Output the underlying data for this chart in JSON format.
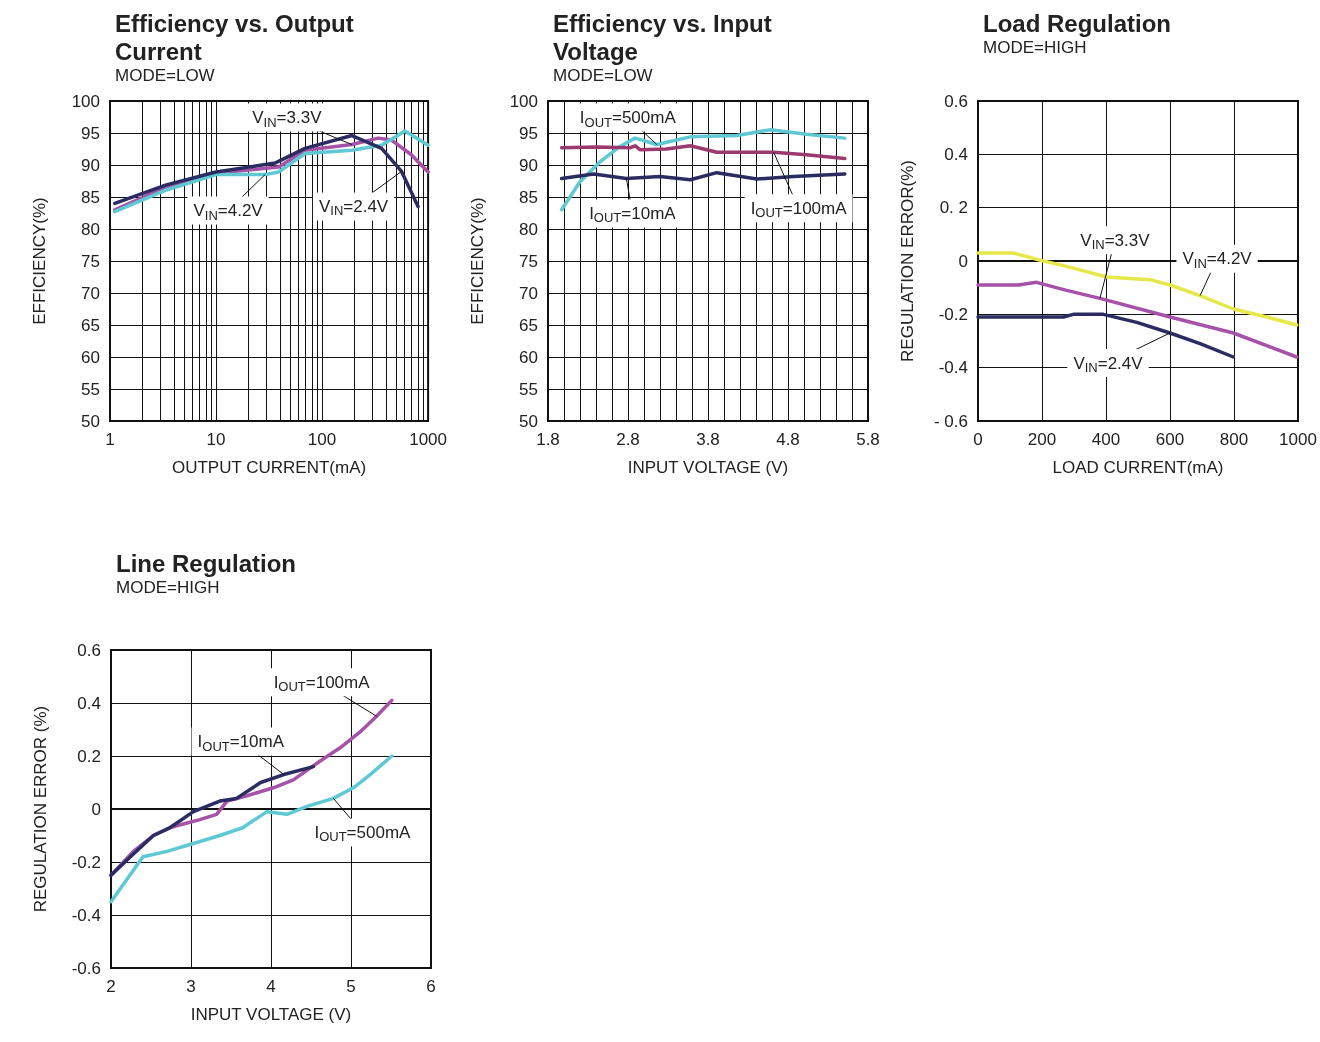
{
  "chart_data": [
    {
      "type": "line",
      "title": "Efficiency vs. Output Current",
      "subtitle": "MODE=LOW",
      "xlabel": "OUTPUT CURRENT(mA)",
      "ylabel": "EFFICIENCY(%)",
      "log": "x",
      "grid": true,
      "xlim": [
        1,
        1000
      ],
      "xticks": [
        1,
        {
          "value": 2,
          "label": null
        },
        {
          "value": 3,
          "label": null
        },
        {
          "value": 4,
          "label": null
        },
        {
          "value": 5,
          "label": null
        },
        {
          "value": 6,
          "label": null
        },
        {
          "value": 7,
          "label": null
        },
        {
          "value": 8,
          "label": null
        },
        {
          "value": 9,
          "label": null
        },
        10,
        {
          "value": 20,
          "label": null
        },
        {
          "value": 30,
          "label": null
        },
        {
          "value": 40,
          "label": null
        },
        {
          "value": 50,
          "label": null
        },
        {
          "value": 60,
          "label": null
        },
        {
          "value": 70,
          "label": null
        },
        {
          "value": 80,
          "label": null
        },
        {
          "value": 90,
          "label": null
        },
        100,
        {
          "value": 200,
          "label": null
        },
        {
          "value": 300,
          "label": null
        },
        {
          "value": 400,
          "label": null
        },
        {
          "value": 500,
          "label": null
        },
        {
          "value": 600,
          "label": null
        },
        {
          "value": 700,
          "label": null
        },
        {
          "value": 800,
          "label": null
        },
        {
          "value": 900,
          "label": null
        },
        1000
      ],
      "ylim": [
        50,
        100
      ],
      "yticks": [
        50,
        55,
        60,
        65,
        70,
        75,
        80,
        85,
        90,
        95,
        100
      ],
      "series": [
        {
          "name": "V$_{IN}$=3.3V",
          "color": "#a552a8",
          "x": [
            1.11,
            3.4,
            10,
            39,
            69,
            191,
            339,
            452,
            695,
            1000
          ],
          "values": [
            83.0,
            86.6,
            88.7,
            89.7,
            92.3,
            93.2,
            94.2,
            93.9,
            91.6,
            88.9
          ]
        },
        {
          "name": "V$_{IN}$=4.2V",
          "color": "#5ec8d3",
          "x": [
            1.11,
            3.4,
            10,
            29,
            39,
            69,
            191,
            364,
            604,
            1000
          ],
          "values": [
            82.7,
            86.1,
            88.5,
            88.5,
            88.9,
            91.8,
            92.3,
            93.1,
            95.3,
            93.1
          ]
        },
        {
          "name": "V$_{IN}$=2.4V",
          "color": "#2b2d62",
          "x": [
            1.11,
            3.4,
            10,
            36,
            69,
            191,
            364,
            562,
            804
          ],
          "values": [
            84.0,
            86.9,
            88.9,
            90.3,
            92.6,
            94.6,
            92.6,
            89.0,
            83.5
          ]
        }
      ]
    },
    {
      "type": "line",
      "title": "Efficiency vs. Input Voltage",
      "subtitle": "MODE=LOW",
      "xlabel": "INPUT VOLTAGE (V)",
      "ylabel": "EFFICIENCY(%)",
      "grid": true,
      "xlim": [
        1.8,
        5.8
      ],
      "xticks": [
        1.8,
        {
          "value": 2,
          "label": null
        },
        {
          "value": 2.2,
          "label": null
        },
        {
          "value": 2.4,
          "label": null
        },
        {
          "value": 2.6,
          "label": null
        },
        2.8,
        {
          "value": 3,
          "label": null
        },
        {
          "value": 3.2,
          "label": null
        },
        {
          "value": 3.4,
          "label": null
        },
        {
          "value": 3.6,
          "label": null
        },
        3.8,
        {
          "value": 4,
          "label": null
        },
        {
          "value": 4.2,
          "label": null
        },
        {
          "value": 4.4,
          "label": null
        },
        {
          "value": 4.6,
          "label": null
        },
        4.8,
        {
          "value": 5,
          "label": null
        },
        {
          "value": 5.2,
          "label": null
        },
        {
          "value": 5.4,
          "label": null
        },
        {
          "value": 5.6,
          "label": null
        },
        5.8
      ],
      "ylim": [
        50,
        100
      ],
      "yticks": [
        50,
        55,
        60,
        65,
        70,
        75,
        80,
        85,
        90,
        95,
        100
      ],
      "series": [
        {
          "name": "I$_{OUT}$=500mA",
          "color": "#5ec8d3",
          "x": [
            1.97,
            2.2,
            2.45,
            2.7,
            2.89,
            3.16,
            3.58,
            4.16,
            4.58,
            5.03,
            5.51
          ],
          "values": [
            83.0,
            87.4,
            90.5,
            92.9,
            94.2,
            93.2,
            94.4,
            94.6,
            95.5,
            94.8,
            94.2
          ]
        },
        {
          "name": "I$_{OUT}$=10mA",
          "color": "#2b2d62",
          "x": [
            1.97,
            2.37,
            2.78,
            3.2,
            3.58,
            3.91,
            4.41,
            4.87,
            5.51
          ],
          "values": [
            87.9,
            88.6,
            87.9,
            88.2,
            87.7,
            88.8,
            87.8,
            88.2,
            88.6
          ]
        },
        {
          "name": "I$_{OUT}$=100mA",
          "color": "#9c3a70",
          "x": [
            1.97,
            2.41,
            2.83,
            2.89,
            2.95,
            3.28,
            3.58,
            3.91,
            4.62,
            5.03,
            5.51
          ],
          "values": [
            92.7,
            92.8,
            92.7,
            93.0,
            92.4,
            92.5,
            93.0,
            92.0,
            92.0,
            91.6,
            91.0
          ]
        }
      ]
    },
    {
      "type": "line",
      "title": "Load Regulation",
      "subtitle": "MODE=HIGH",
      "xlabel": "LOAD CURRENT(mA)",
      "ylabel": "REGULATION ERROR(%)",
      "grid": true,
      "xlim": [
        0,
        1000
      ],
      "xticks": [
        0,
        200,
        400,
        600,
        800,
        1000
      ],
      "ylim": [
        -0.6,
        0.6
      ],
      "yticks": [
        {
          "value": -0.6,
          "label": "- 0.6"
        },
        -0.4,
        -0.2,
        0,
        {
          "value": 0.2,
          "label": "0. 2"
        },
        0.4,
        0.6
      ],
      "series": [
        {
          "name": "V$_{IN}$=3.3V",
          "color": "#a552a8",
          "x": [
            0,
            126,
            183,
            277,
            381,
            600,
            798,
            996
          ],
          "values": [
            -0.09,
            -0.09,
            -0.08,
            -0.11,
            -0.14,
            -0.21,
            -0.27,
            -0.36
          ]
        },
        {
          "name": "V$_{IN}$=4.2V",
          "color": "#e6e84a",
          "x": [
            0,
            110,
            204,
            277,
            402,
            537,
            600,
            694,
            798,
            902,
            996
          ],
          "values": [
            0.03,
            0.03,
            0.0,
            -0.02,
            -0.06,
            -0.07,
            -0.09,
            -0.13,
            -0.18,
            -0.21,
            -0.24
          ]
        },
        {
          "name": "V$_{IN}$=2.4V",
          "color": "#2b2d62",
          "x": [
            0,
            267,
            298,
            392,
            496,
            600,
            694,
            798
          ],
          "values": [
            -0.21,
            -0.21,
            -0.2,
            -0.2,
            -0.23,
            -0.27,
            -0.31,
            -0.36
          ]
        }
      ]
    },
    {
      "type": "line",
      "title": "Line Regulation",
      "subtitle": "MODE=HIGH",
      "xlabel": "INPUT VOLTAGE (V)",
      "ylabel": "REGULATION ERROR (%)",
      "grid": true,
      "xlim": [
        2,
        6
      ],
      "xticks": [
        2,
        3,
        4,
        5,
        6
      ],
      "ylim": [
        -0.6,
        0.6
      ],
      "yticks": [
        -0.6,
        -0.4,
        -0.2,
        0,
        0.2,
        0.4,
        0.6
      ],
      "series": [
        {
          "name": "I$_{OUT}$=100mA",
          "color": "#a552a8",
          "x": [
            2.0,
            2.28,
            2.53,
            2.74,
            3.11,
            3.32,
            3.45,
            3.7,
            4.03,
            4.28,
            4.61,
            4.86,
            5.11,
            5.32,
            5.51
          ],
          "values": [
            -0.25,
            -0.16,
            -0.1,
            -0.07,
            -0.04,
            -0.02,
            0.03,
            0.05,
            0.08,
            0.11,
            0.18,
            0.23,
            0.29,
            0.35,
            0.41
          ]
        },
        {
          "name": "I$_{OUT}$=10mA",
          "color": "#2b2d62",
          "x": [
            2.0,
            2.28,
            2.53,
            2.74,
            3.03,
            3.36,
            3.57,
            3.87,
            4.16,
            4.53
          ],
          "values": [
            -0.25,
            -0.17,
            -0.1,
            -0.07,
            -0.01,
            0.03,
            0.04,
            0.1,
            0.13,
            0.16
          ]
        },
        {
          "name": "I$_{OUT}$=500mA",
          "color": "#5ec8d3",
          "x": [
            2.0,
            2.4,
            2.7,
            3.03,
            3.36,
            3.65,
            3.95,
            4.2,
            4.45,
            4.78,
            5.03,
            5.24,
            5.51
          ],
          "values": [
            -0.35,
            -0.18,
            -0.16,
            -0.13,
            -0.1,
            -0.07,
            -0.01,
            -0.02,
            0.01,
            0.04,
            0.08,
            0.13,
            0.2
          ]
        }
      ]
    }
  ]
}
